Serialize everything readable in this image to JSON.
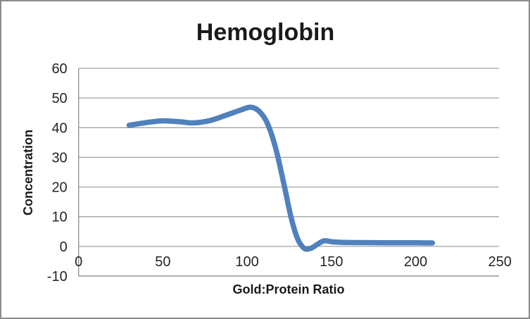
{
  "chart_data": {
    "type": "line",
    "title": "Hemoglobin",
    "xlabel": "Gold:Protein Ratio",
    "ylabel": "Concentration",
    "xlim": [
      0,
      250
    ],
    "ylim": [
      -10,
      60
    ],
    "x_ticks": [
      0,
      50,
      100,
      150,
      200,
      250
    ],
    "y_ticks": [
      60,
      50,
      40,
      30,
      20,
      10,
      0,
      -10
    ],
    "grid": true,
    "legend": false,
    "gridline_color": "#a3a3a3",
    "axis_color": "#8c8c8c",
    "text_color": "#1a1a1a",
    "series": [
      {
        "name": "Hemoglobin",
        "color": "#4F81BD",
        "stroke_width": 7.5,
        "smooth": true,
        "x": [
          30,
          40,
          50,
          60,
          68,
          78,
          88,
          96,
          102,
          107,
          112,
          117,
          122,
          126,
          130,
          134,
          138,
          142,
          146,
          151,
          160,
          175,
          190,
          200,
          210
        ],
        "y": [
          40.8,
          41.7,
          42.3,
          42.0,
          41.6,
          42.4,
          44.3,
          45.9,
          46.9,
          45.6,
          41.5,
          33.0,
          20.5,
          10.0,
          2.5,
          -0.7,
          -0.6,
          0.8,
          1.9,
          1.5,
          1.3,
          1.25,
          1.2,
          1.2,
          1.15
        ]
      }
    ]
  }
}
